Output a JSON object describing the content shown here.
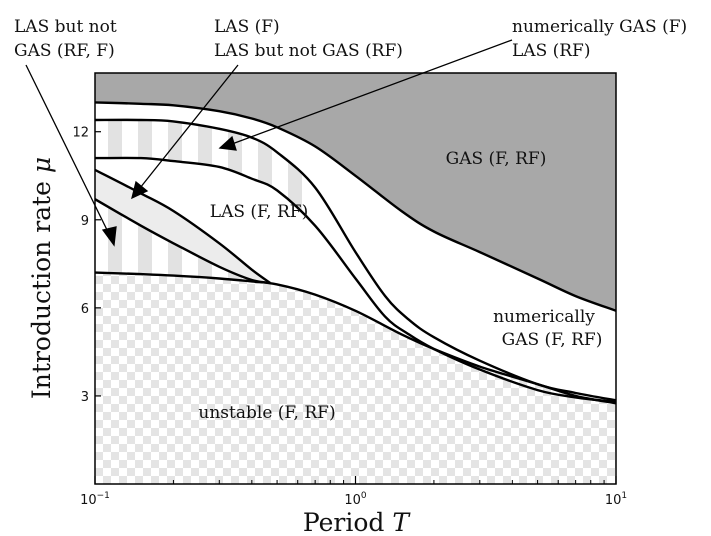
{
  "chart_data": {
    "type": "area",
    "xscale": "log",
    "xlim": [
      0.1,
      10
    ],
    "ylim": [
      0,
      14
    ],
    "xlabel_text": "Period ",
    "xlabel_var": "T",
    "ylabel_text": "Introduction rate ",
    "ylabel_var": "μ",
    "x_ticks": [
      {
        "value": 0.1,
        "base": "10",
        "exp": "−1"
      },
      {
        "value": 1,
        "base": "10",
        "exp": "0"
      },
      {
        "value": 10,
        "base": "10",
        "exp": "1"
      }
    ],
    "y_ticks": [
      {
        "value": 3,
        "label": "3"
      },
      {
        "value": 6,
        "label": "6"
      },
      {
        "value": 9,
        "label": "9"
      },
      {
        "value": 12,
        "label": "12"
      }
    ],
    "curves": {
      "gas_rf": {
        "x": [
          0.1,
          0.15,
          0.2,
          0.3,
          0.4,
          0.5,
          0.7,
          1.0,
          1.5,
          2,
          3,
          5,
          7,
          10
        ],
        "y": [
          13.0,
          12.95,
          12.9,
          12.7,
          12.45,
          12.15,
          11.5,
          10.5,
          9.3,
          8.6,
          7.9,
          7.0,
          6.4,
          5.9
        ]
      },
      "ngas_f": {
        "x": [
          0.1,
          0.15,
          0.2,
          0.3,
          0.4,
          0.5,
          0.7,
          1.0,
          1.3,
          1.6,
          2,
          3,
          5,
          7,
          10
        ],
        "y": [
          12.4,
          12.4,
          12.35,
          12.1,
          11.8,
          11.3,
          10.1,
          7.9,
          6.4,
          5.6,
          5.0,
          4.2,
          3.4,
          3.1,
          2.85
        ]
      },
      "las_f_top": {
        "x": [
          0.1,
          0.15,
          0.2,
          0.3,
          0.4,
          0.5,
          0.7,
          1.0,
          1.3,
          1.6,
          2,
          3,
          5,
          7,
          10
        ],
        "y": [
          11.1,
          11.1,
          11.0,
          10.8,
          10.4,
          10.0,
          8.8,
          7.0,
          5.7,
          5.1,
          4.6,
          3.9,
          3.2,
          2.95,
          2.8
        ]
      },
      "las_rf_lower": {
        "x": [
          0.1,
          0.15,
          0.2,
          0.3,
          0.4,
          0.47
        ],
        "y": [
          10.7,
          9.9,
          9.3,
          8.2,
          7.3,
          6.85
        ]
      },
      "unstable": {
        "x": [
          0.1,
          0.15,
          0.2,
          0.3,
          0.4,
          0.5,
          0.7,
          1.0,
          1.5,
          2,
          3,
          5,
          7,
          10
        ],
        "y": [
          7.2,
          7.15,
          7.1,
          7.0,
          6.9,
          6.8,
          6.45,
          5.9,
          5.1,
          4.6,
          4.0,
          3.4,
          3.0,
          2.75
        ]
      }
    },
    "las_rf_upper_branch": {
      "x": [
        0.1,
        0.15,
        0.2,
        0.3,
        0.4,
        0.47
      ],
      "y": [
        9.7,
        8.8,
        8.2,
        7.4,
        6.95,
        6.85
      ]
    },
    "regions": {
      "gas": "GAS (F, RF)",
      "las": "LAS (F, RF)",
      "unstable": "unstable (F, RF)",
      "num_gas_1": "numerically",
      "num_gas_2": "GAS (F, RF)"
    },
    "annotations": {
      "a1_l1": "LAS but not",
      "a1_l2": "GAS (RF, F)",
      "a2_l1": "LAS (F)",
      "a2_l2": "LAS but not GAS (RF)",
      "a3_l1": "numerically GAS (F)",
      "a3_l2": "LAS (RF)"
    },
    "colors": {
      "gas": "#a8a8a8",
      "stripe": "#e2e2e2",
      "band_light": "#ececec",
      "checker": "#e4e4e4",
      "background": "#ffffff",
      "line": "#000000"
    }
  }
}
